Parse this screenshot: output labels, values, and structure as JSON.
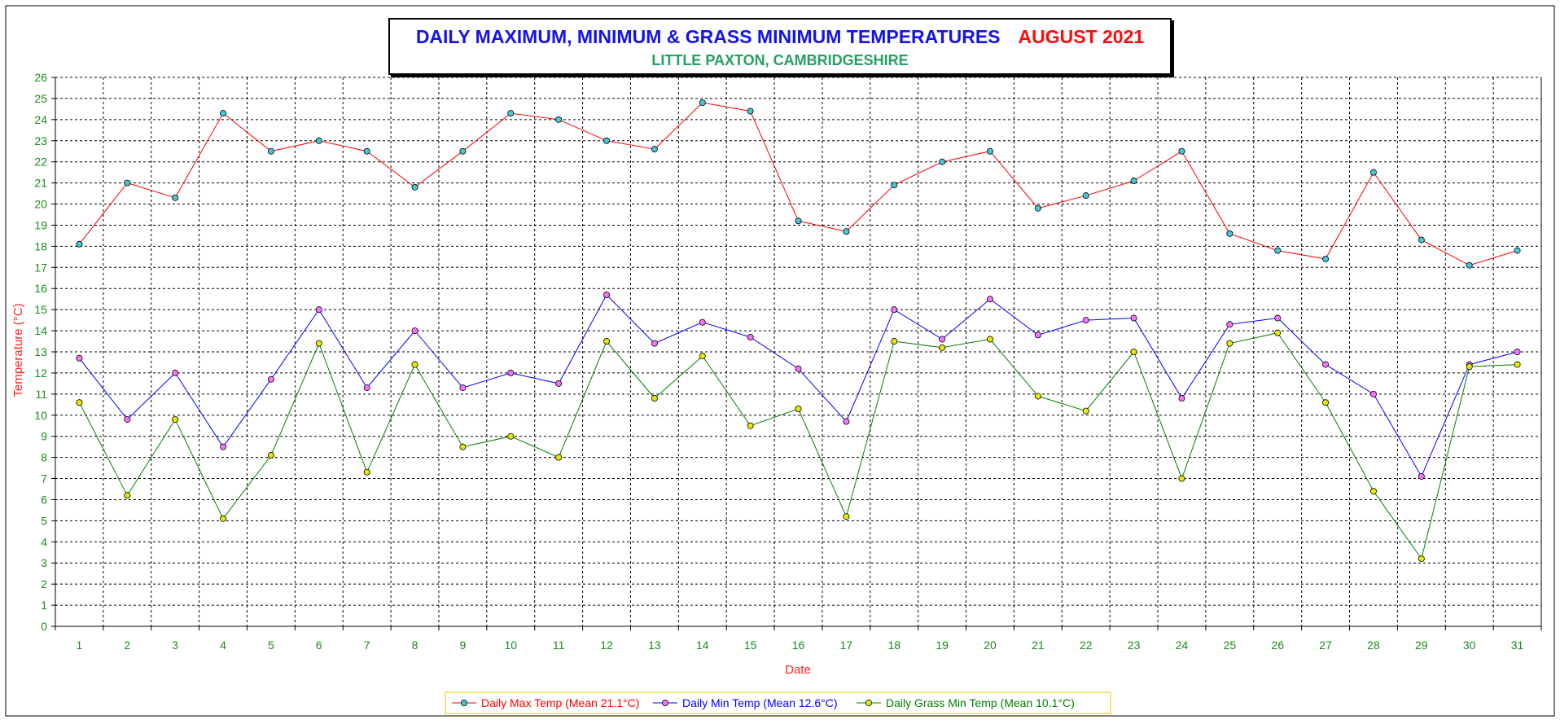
{
  "title": {
    "main": "DAILY MAXIMUM, MINIMUM & GRASS MINIMUM TEMPERATURES",
    "month": "AUGUST 2021",
    "subtitle": "LITTLE PAXTON, CAMBRIDGESHIRE"
  },
  "colors": {
    "title_main": "#1414e6",
    "title_month": "#ff0a0a",
    "subtitle": "#24a060",
    "tick_labels": "#1a8a1a",
    "axis_titles": "#ff2020",
    "grid": "#000000"
  },
  "chart_data": {
    "type": "line",
    "title": "DAILY MAXIMUM, MINIMUM & GRASS MINIMUM TEMPERATURES AUGUST 2021",
    "subtitle": "LITTLE PAXTON, CAMBRIDGESHIRE",
    "xlabel": "Date",
    "ylabel": "Temperature (°C)",
    "ylim": [
      0,
      26
    ],
    "ytick_step": 1,
    "grid": true,
    "legend_position": "bottom",
    "x": [
      1,
      2,
      3,
      4,
      5,
      6,
      7,
      8,
      9,
      10,
      11,
      12,
      13,
      14,
      15,
      16,
      17,
      18,
      19,
      20,
      21,
      22,
      23,
      24,
      25,
      26,
      27,
      28,
      29,
      30,
      31
    ],
    "series": [
      {
        "name": "Daily Max Temp (Mean 21.1°C)",
        "line_color": "#ff0000",
        "marker_color": "#40c8d8",
        "values": [
          18.1,
          21.0,
          20.3,
          24.3,
          22.5,
          23.0,
          22.5,
          20.8,
          22.5,
          24.3,
          24.0,
          23.0,
          22.6,
          24.8,
          24.4,
          19.2,
          18.7,
          20.9,
          22.0,
          22.5,
          19.8,
          20.4,
          21.1,
          22.5,
          18.6,
          17.8,
          17.4,
          21.5,
          18.3,
          17.1,
          17.8
        ]
      },
      {
        "name": "Daily Min Temp (Mean 12.6°C)",
        "line_color": "#0000ff",
        "marker_color": "#ff70ff",
        "values": [
          12.7,
          9.8,
          12.0,
          8.5,
          11.7,
          15.0,
          11.3,
          14.0,
          11.3,
          12.0,
          11.5,
          15.7,
          13.4,
          14.4,
          13.7,
          12.2,
          9.7,
          15.0,
          13.6,
          15.5,
          13.8,
          14.5,
          14.6,
          10.8,
          14.3,
          14.6,
          12.4,
          11.0,
          7.1,
          12.4,
          13.0
        ]
      },
      {
        "name": "Daily Grass Min Temp (Mean 10.1°C)",
        "line_color": "#008000",
        "marker_color": "#e8e800",
        "values": [
          10.6,
          6.2,
          9.8,
          5.1,
          8.1,
          13.4,
          7.3,
          12.4,
          8.5,
          9.0,
          8.0,
          13.5,
          10.8,
          12.8,
          9.5,
          10.3,
          5.2,
          13.5,
          13.2,
          13.6,
          10.9,
          10.2,
          13.0,
          7.0,
          13.4,
          13.9,
          10.6,
          6.4,
          3.2,
          12.3,
          12.4
        ]
      }
    ]
  }
}
